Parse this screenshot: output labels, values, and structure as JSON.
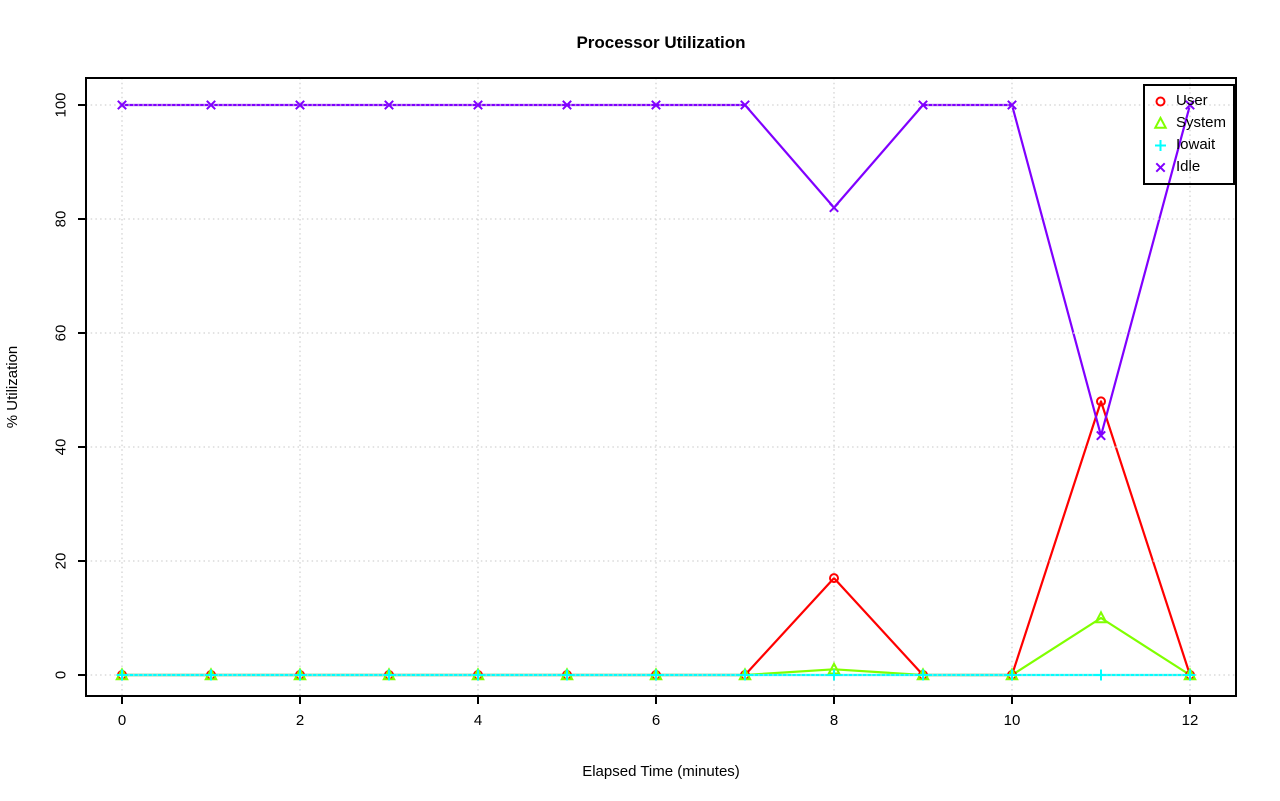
{
  "chart_data": {
    "type": "line",
    "title": "Processor Utilization",
    "xlabel": "Elapsed Time (minutes)",
    "ylabel": "% Utilization",
    "x": [
      0,
      1,
      2,
      3,
      4,
      5,
      6,
      7,
      8,
      9,
      10,
      11,
      12
    ],
    "xticks": [
      0,
      2,
      4,
      6,
      8,
      10,
      12
    ],
    "yticks": [
      0,
      20,
      40,
      60,
      80,
      100
    ],
    "xlim": [
      0,
      12
    ],
    "ylim": [
      0,
      100
    ],
    "grid": {
      "on": true,
      "style": "dotted",
      "color": "#d2d2d2"
    },
    "legend": {
      "position": "topright",
      "border": true
    },
    "axis_color": "#000000",
    "series": [
      {
        "name": "User",
        "color": "#ff0000",
        "marker": "circle",
        "values": [
          0,
          0,
          0,
          0,
          0,
          0,
          0,
          0,
          17,
          0,
          0,
          48,
          0
        ]
      },
      {
        "name": "System",
        "color": "#80ff00",
        "marker": "triangle",
        "values": [
          0,
          0,
          0,
          0,
          0,
          0,
          0,
          0,
          1,
          0,
          0,
          10,
          0
        ]
      },
      {
        "name": "Iowait",
        "color": "#00ffff",
        "marker": "plus",
        "values": [
          0,
          0,
          0,
          0,
          0,
          0,
          0,
          0,
          0,
          0,
          0,
          0,
          0
        ]
      },
      {
        "name": "Idle",
        "color": "#8000ff",
        "marker": "x",
        "values": [
          100,
          100,
          100,
          100,
          100,
          100,
          100,
          100,
          82,
          100,
          100,
          42,
          100
        ]
      }
    ]
  }
}
